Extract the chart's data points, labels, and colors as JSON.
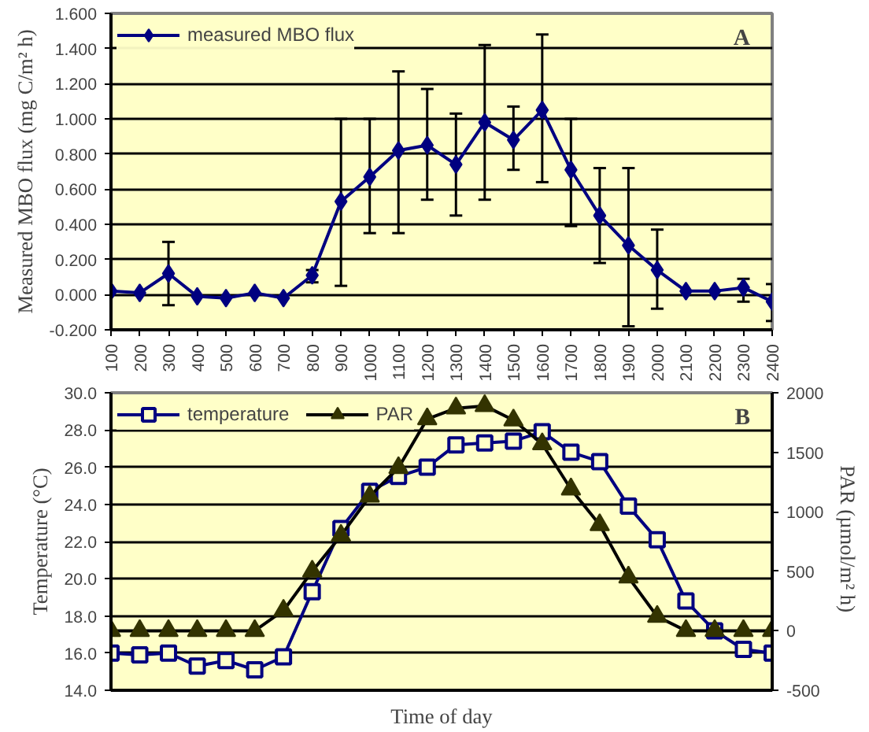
{
  "chart_data": [
    {
      "type": "line",
      "ylabel": "Measured MBO flux (mg C/m² h)",
      "categories": [
        "100",
        "200",
        "300",
        "400",
        "500",
        "600",
        "700",
        "800",
        "900",
        "1000",
        "1100",
        "1200",
        "1300",
        "1400",
        "1500",
        "1600",
        "1700",
        "1800",
        "1900",
        "2000",
        "2100",
        "2200",
        "2300",
        "2400"
      ],
      "series": [
        {
          "name": "measured MBO flux",
          "color": "#000080",
          "marker": "diamond",
          "values": [
            0.02,
            0.01,
            0.12,
            -0.01,
            -0.02,
            0.01,
            -0.02,
            0.11,
            0.53,
            0.67,
            0.82,
            0.85,
            0.74,
            0.98,
            0.88,
            1.05,
            0.71,
            0.45,
            0.28,
            0.14,
            0.02,
            0.02,
            0.04,
            -0.04
          ],
          "errors": [
            null,
            null,
            [
              -0.06,
              0.3
            ],
            null,
            null,
            null,
            null,
            [
              0.07,
              0.14
            ],
            [
              0.05,
              1.0
            ],
            [
              0.35,
              1.0
            ],
            [
              0.35,
              1.27
            ],
            [
              0.54,
              1.17
            ],
            [
              0.45,
              1.03
            ],
            [
              0.54,
              1.42
            ],
            [
              0.71,
              1.07
            ],
            [
              0.64,
              1.48
            ],
            [
              0.39,
              1.0
            ],
            [
              0.18,
              0.72
            ],
            [
              -0.18,
              0.72
            ],
            [
              -0.08,
              0.37
            ],
            null,
            null,
            [
              -0.04,
              0.09
            ],
            [
              -0.15,
              0.06
            ]
          ]
        }
      ],
      "ylim": [
        -0.2,
        1.6
      ],
      "yticks": [
        {
          "value": -0.2,
          "label": "-0.200"
        },
        {
          "value": 0,
          "label": "0.000"
        },
        {
          "value": 0.2,
          "label": "0.200"
        },
        {
          "value": 0.4,
          "label": "0.400"
        },
        {
          "value": 0.6,
          "label": "0.600"
        },
        {
          "value": 0.8,
          "label": "0.800"
        },
        {
          "value": 1.0,
          "label": "1.000"
        },
        {
          "value": 1.2,
          "label": "1.200"
        },
        {
          "value": 1.4,
          "label": "1.400"
        },
        {
          "value": 1.6,
          "label": "1.600"
        }
      ],
      "grid": "y",
      "legend": "top left",
      "annotations": [
        "A"
      ]
    },
    {
      "type": "line",
      "xlabel": "Time of day",
      "ylabel": "Temperature (°C)",
      "y2label": "PAR  (µmol/m² h)",
      "categories": [
        "100",
        "200",
        "300",
        "400",
        "500",
        "600",
        "700",
        "800",
        "900",
        "1000",
        "1100",
        "1200",
        "1300",
        "1400",
        "1500",
        "1600",
        "1700",
        "1800",
        "1900",
        "2000",
        "2100",
        "2200",
        "2300",
        "2400"
      ],
      "series": [
        {
          "name": "temperature",
          "color": "#000080",
          "marker": "square",
          "values": [
            16.0,
            15.9,
            16.0,
            15.3,
            15.6,
            15.1,
            15.8,
            19.3,
            22.7,
            24.7,
            25.5,
            26.0,
            27.2,
            27.3,
            27.4,
            27.9,
            26.8,
            26.3,
            23.9,
            22.1,
            18.8,
            17.2,
            16.2,
            16.0
          ]
        },
        {
          "name": "PAR",
          "color": "#000000",
          "marker": "triangle",
          "axis": "y2",
          "values": [
            0,
            0,
            0,
            0,
            0,
            0,
            170,
            500,
            800,
            1130,
            1370,
            1780,
            1870,
            1890,
            1770,
            1570,
            1190,
            890,
            450,
            120,
            0,
            0,
            0,
            0
          ]
        }
      ],
      "ylim": [
        14,
        30
      ],
      "yticks": [
        {
          "value": 14,
          "label": "14.0"
        },
        {
          "value": 16,
          "label": "16.0"
        },
        {
          "value": 18,
          "label": "18.0"
        },
        {
          "value": 20,
          "label": "20.0"
        },
        {
          "value": 22,
          "label": "22.0"
        },
        {
          "value": 24,
          "label": "24.0"
        },
        {
          "value": 26,
          "label": "26.0"
        },
        {
          "value": 28,
          "label": "28.0"
        },
        {
          "value": 30,
          "label": "30.0"
        }
      ],
      "y2lim": [
        -500,
        2000
      ],
      "y2ticks": [
        -500,
        0,
        500,
        1000,
        1500,
        2000
      ],
      "grid": "y",
      "legend": "top left",
      "tick_labels": "y",
      "annotations": [
        "B"
      ]
    }
  ]
}
